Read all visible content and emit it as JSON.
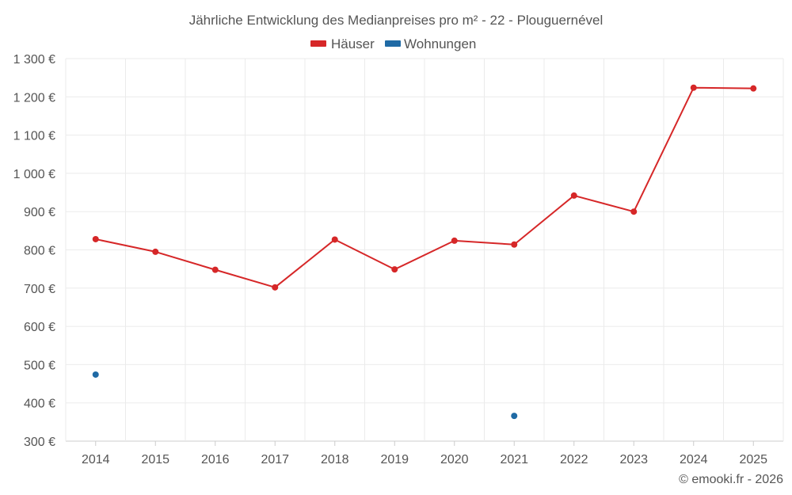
{
  "chart_data": {
    "type": "line",
    "title": "Jährliche Entwicklung des Medianpreises pro m² - 22 - Plouguernével",
    "categories": [
      "2014",
      "2015",
      "2016",
      "2017",
      "2018",
      "2019",
      "2020",
      "2021",
      "2022",
      "2023",
      "2024",
      "2025"
    ],
    "series": [
      {
        "name": "Häuser",
        "color": "#d62728",
        "values": [
          828,
          795,
          748,
          702,
          827,
          749,
          824,
          814,
          942,
          900,
          1224,
          1222
        ]
      },
      {
        "name": "Wohnungen",
        "color": "#1f6aa5",
        "values": [
          474,
          null,
          null,
          null,
          null,
          null,
          null,
          366,
          null,
          null,
          null,
          null
        ]
      }
    ],
    "yticks": [
      "1 300 €",
      "1 200 €",
      "1 100 €",
      "1 000 €",
      "900 €",
      "800 €",
      "700 €",
      "600 €",
      "500 €",
      "400 €",
      "300 €"
    ],
    "ytick_values": [
      1300,
      1200,
      1100,
      1000,
      900,
      800,
      700,
      600,
      500,
      400,
      300
    ],
    "ylim": [
      300,
      1300
    ],
    "xlabel": "",
    "ylabel": "",
    "legend_position": "top-center",
    "grid": true
  },
  "credit": "© emooki.fr - 2026"
}
